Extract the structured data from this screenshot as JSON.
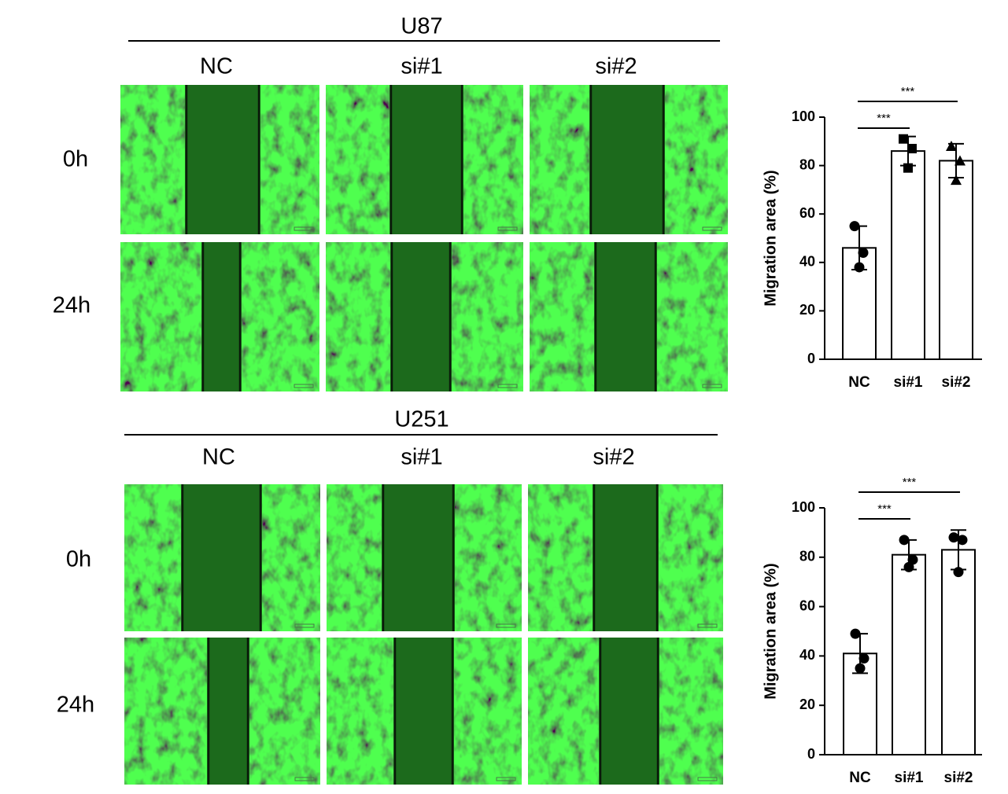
{
  "panels": [
    {
      "cell_line": "U87",
      "columns": [
        "NC",
        "si#1",
        "si#2"
      ],
      "rows": [
        "0h",
        "24h"
      ]
    },
    {
      "cell_line": "U251",
      "columns": [
        "NC",
        "si#1",
        "si#2"
      ],
      "rows": [
        "0h",
        "24h"
      ]
    }
  ],
  "chart_data": [
    {
      "type": "bar",
      "categories": [
        "NC",
        "si#1",
        "si#2"
      ],
      "values": [
        46,
        86,
        82
      ],
      "errors": [
        9,
        6,
        7
      ],
      "points": [
        [
          55,
          44,
          38
        ],
        [
          91,
          87,
          79
        ],
        [
          88,
          82,
          74
        ]
      ],
      "markers": [
        "circle",
        "square",
        "triangle"
      ],
      "color": "#ffffff",
      "ylim": [
        0,
        100
      ],
      "yticks": [
        0,
        20,
        40,
        60,
        80,
        100
      ],
      "y_label": "Migration area (%)",
      "significance": [
        {
          "between": [
            "NC",
            "si#1"
          ],
          "label": "***"
        },
        {
          "between": [
            "NC",
            "si#2"
          ],
          "label": "***"
        }
      ]
    },
    {
      "type": "bar",
      "categories": [
        "NC",
        "si#1",
        "si#2"
      ],
      "values": [
        41,
        81,
        83
      ],
      "errors": [
        8,
        6,
        8
      ],
      "points": [
        [
          49,
          39,
          35
        ],
        [
          87,
          79,
          76
        ],
        [
          88,
          87,
          74
        ]
      ],
      "markers": [
        "circle",
        "circle",
        "circle"
      ],
      "color": "#ffffff",
      "ylim": [
        0,
        100
      ],
      "yticks": [
        0,
        20,
        40,
        60,
        80,
        100
      ],
      "y_label": "Migration area (%)",
      "significance": [
        {
          "between": [
            "NC",
            "si#1"
          ],
          "label": "***"
        },
        {
          "between": [
            "NC",
            "si#2"
          ],
          "label": "***"
        }
      ]
    }
  ]
}
